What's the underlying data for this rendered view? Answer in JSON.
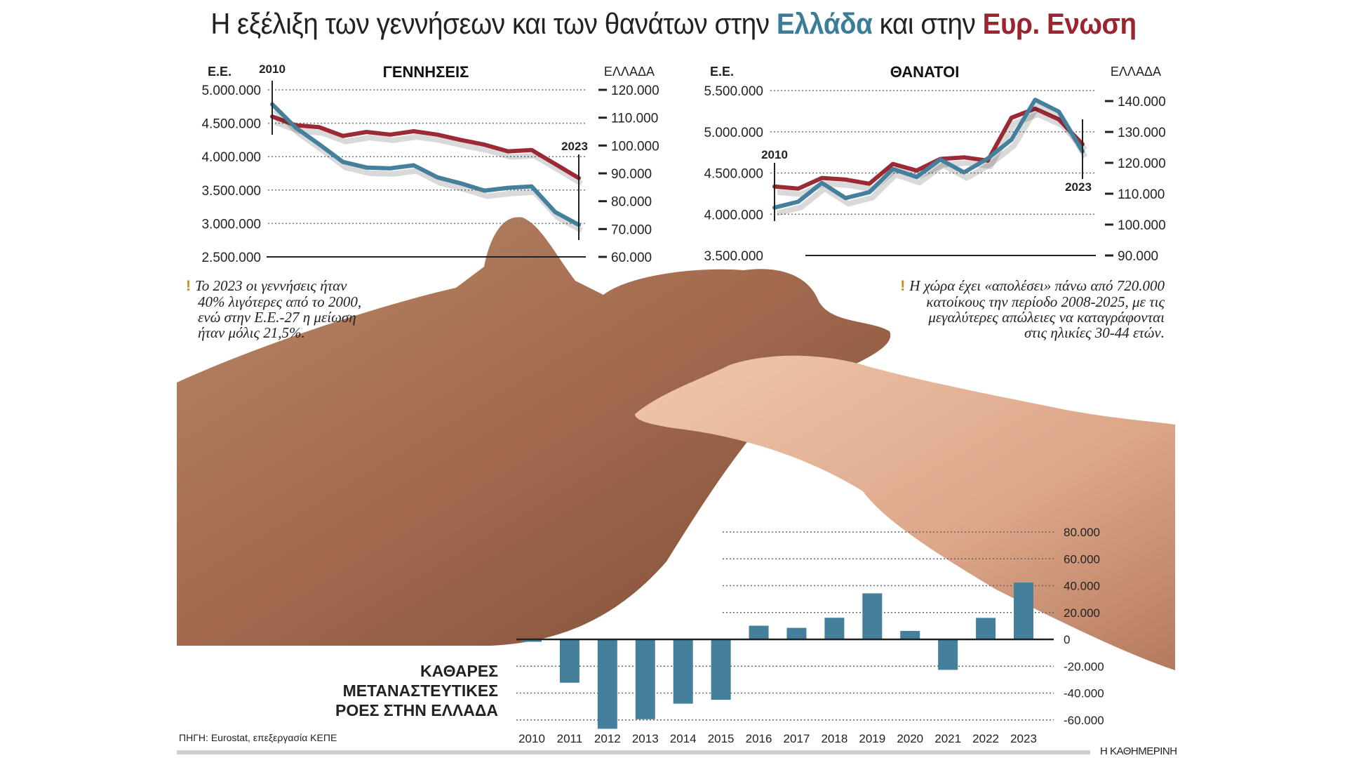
{
  "title": {
    "prefix": "Η εξέλιξη των γεννήσεων και των θανάτων στην ",
    "greece": "Ελλάδα",
    "middle": " και στην ",
    "eu": "Ευρ. Ενωση"
  },
  "colors": {
    "greece": "#447f9b",
    "eu": "#9b2a35",
    "greece_title": "#3b7d98",
    "eu_title": "#9a2530",
    "note_mark": "#d08a1c"
  },
  "chart_data": [
    {
      "type": "line",
      "title": "ΓΕΝΝΗΣΕΙΣ",
      "left_axis_label": "Ε.Ε.",
      "right_axis_label": "ΕΛΛΑΔΑ",
      "start_marker": "2010",
      "end_marker": "2023",
      "x": [
        2010,
        2011,
        2012,
        2013,
        2014,
        2015,
        2016,
        2017,
        2018,
        2019,
        2020,
        2021,
        2022,
        2023
      ],
      "left_ylim": [
        2500000,
        5000000
      ],
      "left_ticks": [
        "5.000.000",
        "4.500.000",
        "4.000.000",
        "3.500.000",
        "3.000.000",
        "2.500.000"
      ],
      "left_tick_values": [
        5000000,
        4500000,
        4000000,
        3500000,
        3000000,
        2500000
      ],
      "right_ylim": [
        60000,
        120000
      ],
      "right_ticks": [
        "120.000",
        "110.000",
        "100.000",
        "90.000",
        "80.000",
        "70.000",
        "60.000"
      ],
      "right_tick_values": [
        120000,
        110000,
        100000,
        90000,
        80000,
        70000,
        60000
      ],
      "grid": true,
      "series": [
        {
          "axis": "left",
          "color": "#9b2a35",
          "values": [
            4600000,
            4470000,
            4440000,
            4310000,
            4370000,
            4330000,
            4380000,
            4330000,
            4250000,
            4180000,
            4080000,
            4100000,
            3890000,
            3680000
          ]
        },
        {
          "axis": "right",
          "color": "#447f9b",
          "values": [
            114800,
            106400,
            100400,
            94100,
            92100,
            91800,
            92900,
            88600,
            86400,
            83800,
            84800,
            85300,
            76100,
            71500
          ]
        }
      ]
    },
    {
      "type": "line",
      "title": "ΘΑΝΑΤΟΙ",
      "left_axis_label": "Ε.Ε.",
      "right_axis_label": "ΕΛΛΑΔΑ",
      "start_marker": "2010",
      "end_marker": "2023",
      "x": [
        2010,
        2011,
        2012,
        2013,
        2014,
        2015,
        2016,
        2017,
        2018,
        2019,
        2020,
        2021,
        2022,
        2023
      ],
      "left_ylim": [
        3500000,
        5500000
      ],
      "left_ticks": [
        "5.500.000",
        "5.000.000",
        "4.500.000",
        "4.000.000",
        "3.500.000"
      ],
      "left_tick_values": [
        5500000,
        5000000,
        4500000,
        4000000,
        3500000
      ],
      "right_ylim": [
        90000,
        140000
      ],
      "right_ticks": [
        "140.000",
        "130.000",
        "120.000",
        "110.000",
        "100.000",
        "90.000"
      ],
      "right_tick_values": [
        140000,
        130000,
        120000,
        110000,
        100000,
        90000
      ],
      "grid": true,
      "series": [
        {
          "axis": "left",
          "color": "#9b2a35",
          "values": [
            4336000,
            4310000,
            4440000,
            4420000,
            4370000,
            4610000,
            4530000,
            4670000,
            4690000,
            4650000,
            5170000,
            5280000,
            5150000,
            4850000
          ]
        },
        {
          "axis": "right",
          "color": "#447f9b",
          "values": [
            105500,
            107400,
            113500,
            108600,
            110500,
            118000,
            115400,
            121100,
            116900,
            121400,
            127500,
            140400,
            136600,
            123700
          ]
        }
      ]
    },
    {
      "type": "bar",
      "title": "ΚΑΘΑΡΕΣ ΜΕΤΑΝΑΣΤΕΥΤΙΚΕΣ ΡΟΕΣ ΣΤΗΝ ΕΛΛΑΔΑ",
      "title_lines": [
        "ΚΑΘΑΡΕΣ",
        "ΜΕΤΑΝΑΣΤΕΥΤΙΚΕΣ",
        "ΡΟΕΣ ΣΤΗΝ ΕΛΛΑΔΑ"
      ],
      "categories": [
        "2010",
        "2011",
        "2012",
        "2013",
        "2014",
        "2015",
        "2016",
        "2017",
        "2018",
        "2019",
        "2020",
        "2021",
        "2022",
        "2023"
      ],
      "values": [
        -1800,
        -32300,
        -66600,
        -59500,
        -47900,
        -45000,
        10200,
        8600,
        16100,
        34300,
        6300,
        -22700,
        16000,
        42300
      ],
      "color": "#447f9b",
      "ylim": [
        -60000,
        80000
      ],
      "ticks": [
        "80.000",
        "60.000",
        "40.000",
        "20.000",
        "0",
        "-20.000",
        "-40.000",
        "-60.000"
      ],
      "tick_values": [
        80000,
        60000,
        40000,
        20000,
        0,
        -20000,
        -40000,
        -60000
      ],
      "grid": true
    }
  ],
  "notes": {
    "births": [
      "Το 2023 οι γεννήσεις ήταν",
      "40% λιγότερες από το 2000,",
      "ενώ στην Ε.Ε.-27 η μείωση",
      "ήταν μόλις 21,5%."
    ],
    "deaths": [
      "Η χώρα έχει «απολέσει» πάνω από 720.000",
      "κατοίκους την περίοδο 2008-2025, με τις",
      "μεγαλύτερες απώλειες να καταγράφονται",
      "στις ηλικίες 30-44 ετών."
    ],
    "mark": "!"
  },
  "source": "ΠΗΓΗ: Eurostat, επεξεργασία ΚΕΠΕ",
  "brand": "Η ΚΑΘΗΜΕΡΙΝΗ"
}
